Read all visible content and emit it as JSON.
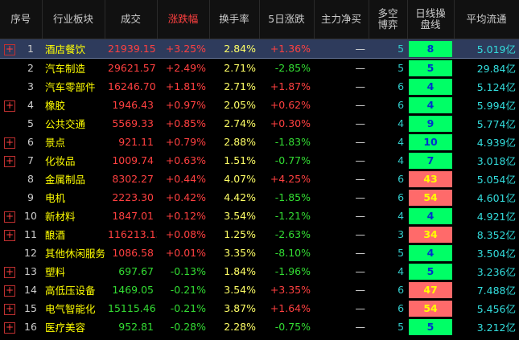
{
  "header": [
    "序号",
    "行业板块",
    "成交",
    "涨跌幅",
    "换手率",
    "5日涨跌",
    "主力净买",
    "多空\n博弈",
    "日线操\n盘线",
    "平均流通"
  ],
  "selected_row": 0,
  "rows": [
    {
      "expandable": true,
      "box_color": "#00ff66",
      "cells": [
        "1",
        "酒店餐饮",
        "21939.15",
        "+3.25%",
        "2.84%",
        "+1.36%",
        "—",
        "5",
        "8",
        "5.019亿"
      ]
    },
    {
      "expandable": false,
      "box_color": "#00ff66",
      "cells": [
        "2",
        "汽车制造",
        "29621.57",
        "+2.49%",
        "2.71%",
        "-2.85%",
        "—",
        "5",
        "5",
        "29.84亿"
      ]
    },
    {
      "expandable": false,
      "box_color": "#00ff66",
      "cells": [
        "3",
        "汽车零部件",
        "16246.70",
        "+1.81%",
        "2.71%",
        "+1.87%",
        "—",
        "6",
        "4",
        "5.124亿"
      ]
    },
    {
      "expandable": true,
      "box_color": "#00ff66",
      "cells": [
        "4",
        "橡胶",
        "1946.43",
        "+0.97%",
        "2.05%",
        "+0.62%",
        "—",
        "6",
        "4",
        "5.994亿"
      ]
    },
    {
      "expandable": false,
      "box_color": "#00ff66",
      "cells": [
        "5",
        "公共交通",
        "5569.33",
        "+0.85%",
        "2.74%",
        "+0.30%",
        "—",
        "4",
        "9",
        "5.774亿"
      ]
    },
    {
      "expandable": true,
      "box_color": "#00ff66",
      "cells": [
        "6",
        "景点",
        "921.11",
        "+0.79%",
        "2.88%",
        "-1.83%",
        "—",
        "4",
        "10",
        "4.939亿"
      ]
    },
    {
      "expandable": true,
      "box_color": "#00ff66",
      "cells": [
        "7",
        "化妆品",
        "1009.74",
        "+0.63%",
        "1.51%",
        "-0.77%",
        "—",
        "4",
        "7",
        "3.018亿"
      ]
    },
    {
      "expandable": false,
      "box_color": "#ff6a6a",
      "cells": [
        "8",
        "金属制品",
        "8302.27",
        "+0.44%",
        "4.07%",
        "+4.25%",
        "—",
        "6",
        "43",
        "5.054亿"
      ]
    },
    {
      "expandable": false,
      "box_color": "#ff6a6a",
      "cells": [
        "9",
        "电机",
        "2223.30",
        "+0.42%",
        "4.42%",
        "-1.85%",
        "—",
        "6",
        "54",
        "4.601亿"
      ]
    },
    {
      "expandable": true,
      "box_color": "#00ff66",
      "cells": [
        "10",
        "新材料",
        "1847.01",
        "+0.12%",
        "3.54%",
        "-1.21%",
        "—",
        "4",
        "4",
        "4.921亿"
      ]
    },
    {
      "expandable": true,
      "box_color": "#ff6a6a",
      "cells": [
        "11",
        "酿酒",
        "116213.13",
        "+0.08%",
        "1.25%",
        "-2.63%",
        "—",
        "3",
        "34",
        "8.352亿"
      ]
    },
    {
      "expandable": false,
      "box_color": "#00ff66",
      "cells": [
        "12",
        "其他休闲服务",
        "1086.58",
        "+0.01%",
        "3.35%",
        "-8.10%",
        "—",
        "5",
        "4",
        "3.504亿"
      ]
    },
    {
      "expandable": true,
      "box_color": "#00ff66",
      "cells": [
        "13",
        "塑料",
        "697.67",
        "-0.13%",
        "1.84%",
        "-1.96%",
        "—",
        "4",
        "5",
        "3.236亿"
      ]
    },
    {
      "expandable": true,
      "box_color": "#ff6a6a",
      "cells": [
        "14",
        "高低压设备",
        "1469.05",
        "-0.21%",
        "3.54%",
        "+3.35%",
        "—",
        "6",
        "47",
        "7.488亿"
      ]
    },
    {
      "expandable": true,
      "box_color": "#ff6a6a",
      "cells": [
        "15",
        "电气智能化",
        "15115.46",
        "-0.21%",
        "3.87%",
        "+1.64%",
        "—",
        "6",
        "54",
        "5.456亿"
      ]
    },
    {
      "expandable": true,
      "box_color": "#00ff66",
      "cells": [
        "16",
        "医疗美容",
        "952.81",
        "-0.28%",
        "2.28%",
        "-0.75%",
        "—",
        "5",
        "5",
        "3.212亿"
      ]
    }
  ]
}
